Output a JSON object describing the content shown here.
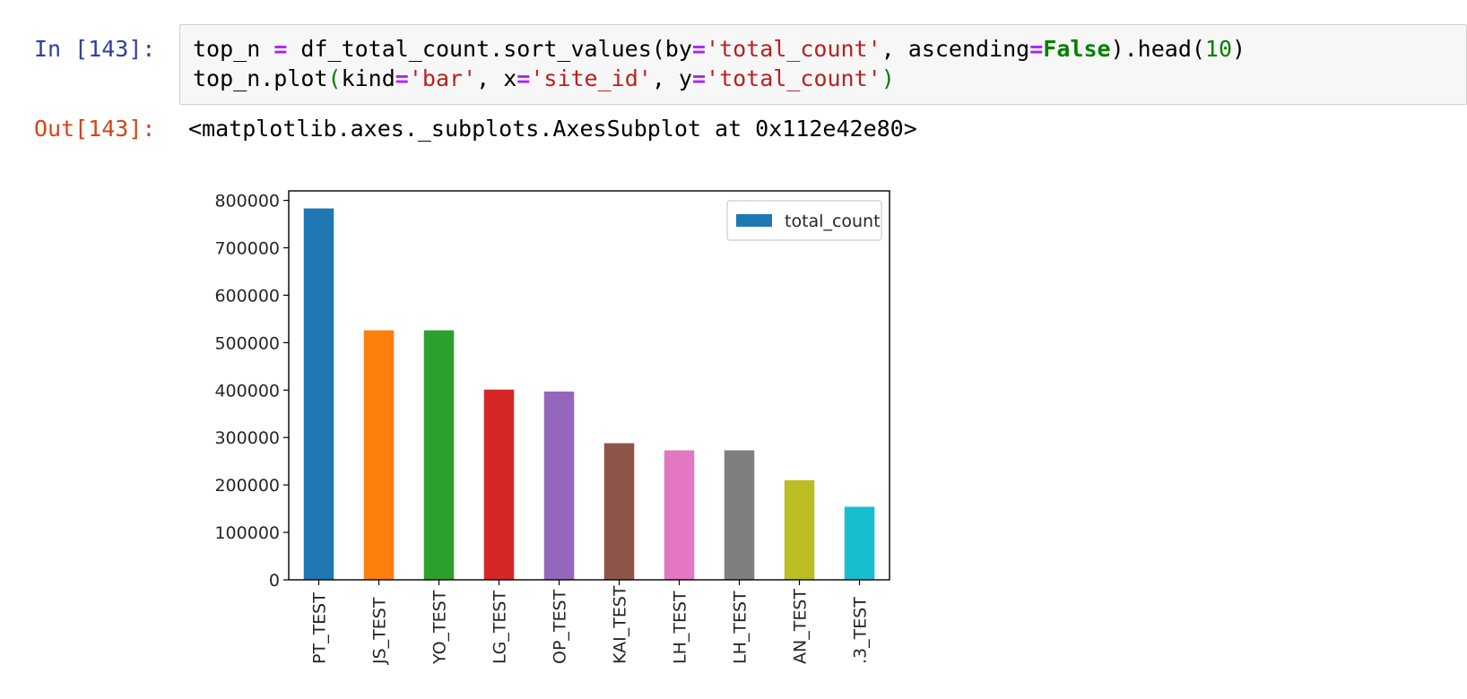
{
  "cell": {
    "in_prompt": "In [143]:",
    "out_prompt": "Out[143]:",
    "code": {
      "line1": {
        "a": "top_n ",
        "b": "=",
        "c": " df_total_count.sort_values(by",
        "d": "=",
        "e": "'total_count'",
        "f": ", ascending",
        "g": "=",
        "h": "False",
        "i": ").head(",
        "j": "10",
        "k": ")"
      },
      "line2": {
        "a": "top_n.plot",
        "b": "(",
        "c": "kind",
        "d": "=",
        "e": "'bar'",
        "f": ", x",
        "g": "=",
        "h": "'site_id'",
        "i": ", y",
        "j": "=",
        "k": "'total_count'",
        "l": ")"
      }
    },
    "output_text": "<matplotlib.axes._subplots.AxesSubplot at 0x112e42e80>"
  },
  "colors": {
    "prompt_in": "#303f9f",
    "prompt_out": "#d84315",
    "cell_background": "#f7f7f7"
  },
  "chart_data": {
    "type": "bar",
    "categories": [
      "PT_TEST",
      "JS_TEST",
      "YO_TEST",
      "LG_TEST",
      "OP_TEST",
      "KAI_TEST",
      "LH_TEST",
      "LH_TEST",
      "AN_TEST",
      ".3_TEST"
    ],
    "values": [
      783000,
      526000,
      526000,
      401000,
      397000,
      288000,
      273000,
      273000,
      210000,
      154000
    ],
    "colors": [
      "#1f77b4",
      "#ff7f0e",
      "#2ca02c",
      "#d62728",
      "#9467bd",
      "#8c564b",
      "#e377c2",
      "#7f7f7f",
      "#bcbd22",
      "#17becf"
    ],
    "ylim": [
      0,
      820000
    ],
    "yticks": [
      0,
      100000,
      200000,
      300000,
      400000,
      500000,
      600000,
      700000,
      800000
    ],
    "ytick_labels": [
      "0",
      "100000",
      "200000",
      "300000",
      "400000",
      "500000",
      "600000",
      "700000",
      "800000"
    ],
    "legend": {
      "label": "total_count",
      "placement": "top-right",
      "color": "#1f77b4"
    },
    "grid": false
  }
}
